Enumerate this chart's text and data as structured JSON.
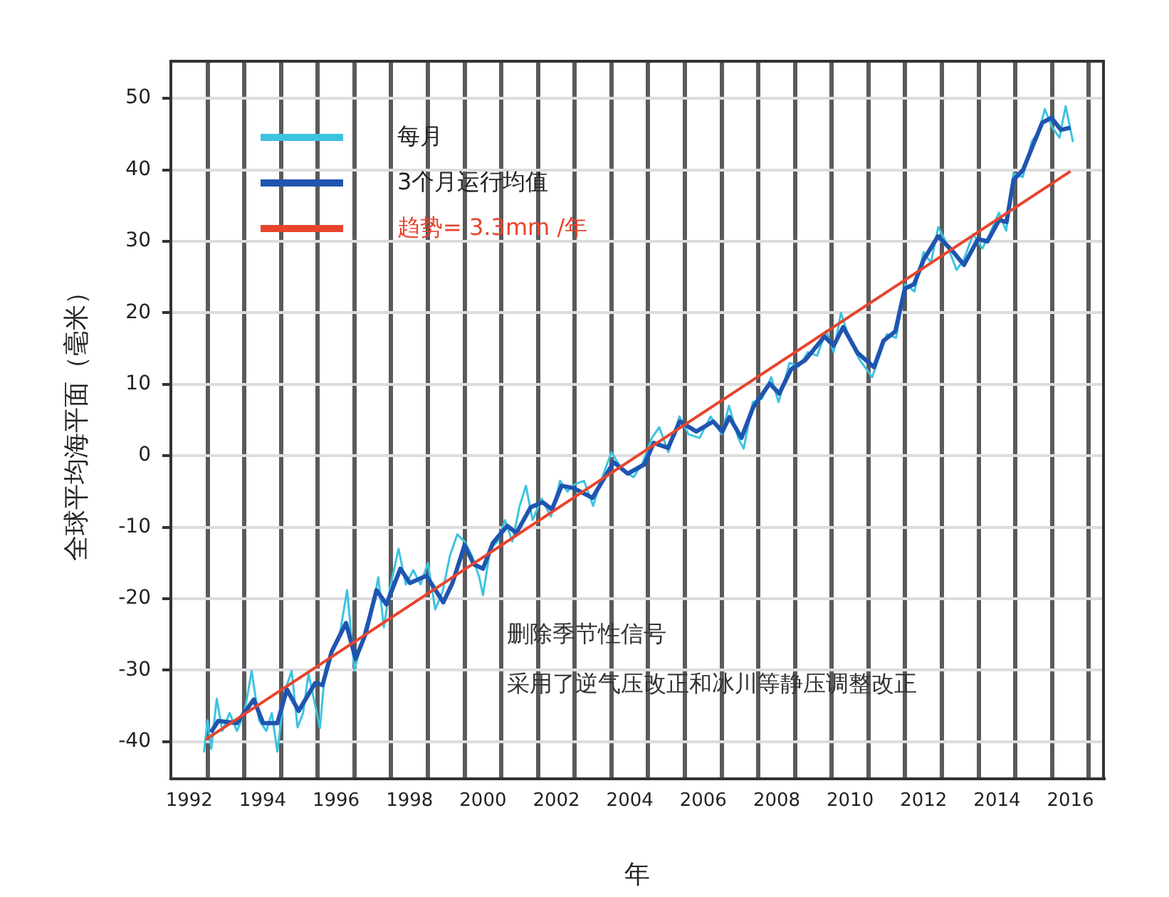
{
  "chart_data": {
    "type": "line",
    "xlabel": "年",
    "ylabel": "全球平均海平面（毫米）",
    "xlim": [
      1992,
      2017.4
    ],
    "ylim": [
      -45.2,
      55.2
    ],
    "xticks": [
      {
        "value": 1992.5,
        "label": "1992"
      },
      {
        "value": 1993,
        "label": null
      },
      {
        "value": 1994,
        "label": null
      },
      {
        "value": 1994.5,
        "label": "1994"
      },
      {
        "value": 1995,
        "label": null
      },
      {
        "value": 1996,
        "label": null
      },
      {
        "value": 1996.5,
        "label": "1996"
      },
      {
        "value": 1997,
        "label": null
      },
      {
        "value": 1998,
        "label": null
      },
      {
        "value": 1998.5,
        "label": "1998"
      },
      {
        "value": 1999,
        "label": null
      },
      {
        "value": 2000,
        "label": null
      },
      {
        "value": 2000.5,
        "label": "2000"
      },
      {
        "value": 2001,
        "label": null
      },
      {
        "value": 2002,
        "label": null
      },
      {
        "value": 2002.5,
        "label": "2002"
      },
      {
        "value": 2003,
        "label": null
      },
      {
        "value": 2004,
        "label": null
      },
      {
        "value": 2004.5,
        "label": "2004"
      },
      {
        "value": 2005,
        "label": null
      },
      {
        "value": 2006,
        "label": null
      },
      {
        "value": 2006.5,
        "label": "2006"
      },
      {
        "value": 2007,
        "label": null
      },
      {
        "value": 2008,
        "label": null
      },
      {
        "value": 2008.5,
        "label": "2008"
      },
      {
        "value": 2009,
        "label": null
      },
      {
        "value": 2010,
        "label": null
      },
      {
        "value": 2010.5,
        "label": "2010"
      },
      {
        "value": 2011,
        "label": null
      },
      {
        "value": 2012,
        "label": null
      },
      {
        "value": 2012.5,
        "label": "2012"
      },
      {
        "value": 2013,
        "label": null
      },
      {
        "value": 2014,
        "label": null
      },
      {
        "value": 2014.5,
        "label": "2014"
      },
      {
        "value": 2015,
        "label": null
      },
      {
        "value": 2016,
        "label": null
      },
      {
        "value": 2016.5,
        "label": "2016"
      },
      {
        "value": 2017,
        "label": null
      }
    ],
    "yticks": [
      -40,
      -30,
      -20,
      -10,
      0,
      10,
      20,
      30,
      40,
      50
    ],
    "grid": true,
    "legend": "top left",
    "marker": "none",
    "line_style": "solid",
    "annotations": [
      "删除季节性信号",
      "采用了逆气压改正和冰川等静压调整改正"
    ],
    "series": [
      {
        "name": "每月",
        "color": "#3cc3e0",
        "x": [
          1992.9,
          1993.0,
          1993.1,
          1993.25,
          1993.4,
          1993.6,
          1993.8,
          1994.0,
          1994.2,
          1994.4,
          1994.6,
          1994.75,
          1994.9,
          1995.1,
          1995.29,
          1995.45,
          1995.6,
          1995.75,
          1996.06,
          1996.2,
          1996.4,
          1996.6,
          1996.8,
          1997.0,
          1997.15,
          1997.3,
          1997.5,
          1997.65,
          1997.8,
          1997.95,
          1998.2,
          1998.4,
          1998.6,
          1998.8,
          1999.0,
          1999.2,
          1999.4,
          1999.6,
          1999.8,
          2000.0,
          2000.2,
          2000.4,
          2000.5,
          2000.7,
          2000.9,
          2001.1,
          2001.3,
          2001.5,
          2001.67,
          2001.85,
          2002.1,
          2002.35,
          2002.6,
          2002.8,
          2003.0,
          2003.25,
          2003.5,
          2003.75,
          2004.0,
          2004.3,
          2004.6,
          2004.85,
          2005.1,
          2005.3,
          2005.55,
          2005.85,
          2006.1,
          2006.4,
          2006.7,
          2007.0,
          2007.2,
          2007.45,
          2007.6,
          2007.85,
          2008.1,
          2008.35,
          2008.55,
          2008.85,
          2009.1,
          2009.35,
          2009.6,
          2009.85,
          2010.05,
          2010.25,
          2010.5,
          2010.75,
          2011.1,
          2011.3,
          2011.5,
          2011.75,
          2012.0,
          2012.25,
          2012.5,
          2012.7,
          2012.9,
          2013.1,
          2013.4,
          2013.6,
          2013.85,
          2014.1,
          2014.3,
          2014.55,
          2014.75,
          2014.95,
          2015.2,
          2015.45,
          2015.65,
          2015.8,
          2016.0,
          2016.2,
          2016.37,
          2016.57
        ],
        "values": [
          -41.5,
          -37,
          -41,
          -34,
          -38.5,
          -36,
          -38.5,
          -36,
          -30.1,
          -37,
          -38.5,
          -36,
          -41.4,
          -33,
          -30.1,
          -38,
          -36,
          -30.5,
          -38.1,
          -30,
          -27,
          -25,
          -18.8,
          -30,
          -27,
          -24,
          -21,
          -17,
          -24,
          -19,
          -13,
          -18,
          -16,
          -18,
          -15,
          -21.5,
          -19,
          -14,
          -11,
          -12,
          -14,
          -17,
          -19.5,
          -13,
          -12,
          -9,
          -12,
          -7,
          -4.2,
          -9,
          -6,
          -8.5,
          -3.5,
          -5,
          -4,
          -3.5,
          -7,
          -3,
          0.5,
          -2,
          -3,
          -1,
          2.5,
          4,
          0.5,
          5.5,
          3,
          2.5,
          5.5,
          3,
          7,
          2.5,
          1,
          7.5,
          8,
          11,
          7.5,
          13,
          12.5,
          14.5,
          14,
          17.5,
          14.5,
          20,
          16,
          13.5,
          11,
          14,
          17,
          16.5,
          24,
          23,
          28.5,
          27,
          32,
          30,
          26,
          27.5,
          31,
          29,
          31,
          34,
          31.5,
          39.5,
          39,
          44,
          45.5,
          48.5,
          46,
          44.5,
          48.9,
          43.9
        ]
      },
      {
        "name": "3个月运行均值",
        "color": "#1f55b0",
        "x": [
          1993.09,
          1993.29,
          1993.8,
          1994.26,
          1994.51,
          1994.9,
          1995.16,
          1995.48,
          1995.93,
          1996.13,
          1996.38,
          1996.77,
          1997.03,
          1997.29,
          1997.6,
          1997.87,
          1998.25,
          1998.51,
          1998.96,
          1999.42,
          1999.67,
          2000.0,
          2000.25,
          2000.5,
          2000.77,
          2001.16,
          2001.41,
          2001.8,
          2002.12,
          2002.38,
          2002.64,
          2002.96,
          2003.48,
          2004.06,
          2004.44,
          2004.9,
          2005.15,
          2005.54,
          2005.86,
          2006.31,
          2006.77,
          2007.02,
          2007.21,
          2007.54,
          2007.86,
          2008.31,
          2008.57,
          2008.89,
          2009.28,
          2009.8,
          2010.05,
          2010.31,
          2010.7,
          2011.15,
          2011.41,
          2011.73,
          2011.99,
          2012.24,
          2012.5,
          2012.89,
          2013.28,
          2013.6,
          2013.98,
          2014.24,
          2014.56,
          2014.76,
          2014.95,
          2015.21,
          2015.47,
          2015.73,
          2015.98,
          2016.24,
          2016.5
        ],
        "values": [
          -38.7,
          -37.1,
          -37.4,
          -34.1,
          -37.4,
          -37.4,
          -32.7,
          -35.7,
          -31.8,
          -32.1,
          -27.4,
          -23.4,
          -28.4,
          -25.1,
          -18.8,
          -20.8,
          -15.8,
          -17.8,
          -16.8,
          -20.5,
          -17.8,
          -12.5,
          -15.2,
          -15.8,
          -12.2,
          -9.8,
          -10.8,
          -7.2,
          -6.5,
          -7.5,
          -4.2,
          -4.5,
          -5.9,
          -0.9,
          -2.5,
          -1.2,
          1.8,
          1.1,
          4.8,
          3.4,
          4.8,
          3.4,
          5.4,
          2.5,
          6.8,
          10.1,
          8.7,
          12.1,
          13.4,
          16.7,
          15.4,
          18.0,
          14.4,
          12.4,
          16.1,
          17.4,
          23.4,
          24.0,
          27.4,
          30.7,
          28.7,
          26.7,
          30.3,
          30.0,
          33.0,
          32.7,
          38.6,
          40.0,
          43.3,
          46.6,
          47.3,
          45.6,
          45.9
        ]
      },
      {
        "name": "趋势= 3.3mm /年",
        "color": "#e8442c",
        "x": [
          1992.95,
          2016.5
        ],
        "values": [
          -39.7,
          39.8
        ]
      }
    ]
  }
}
